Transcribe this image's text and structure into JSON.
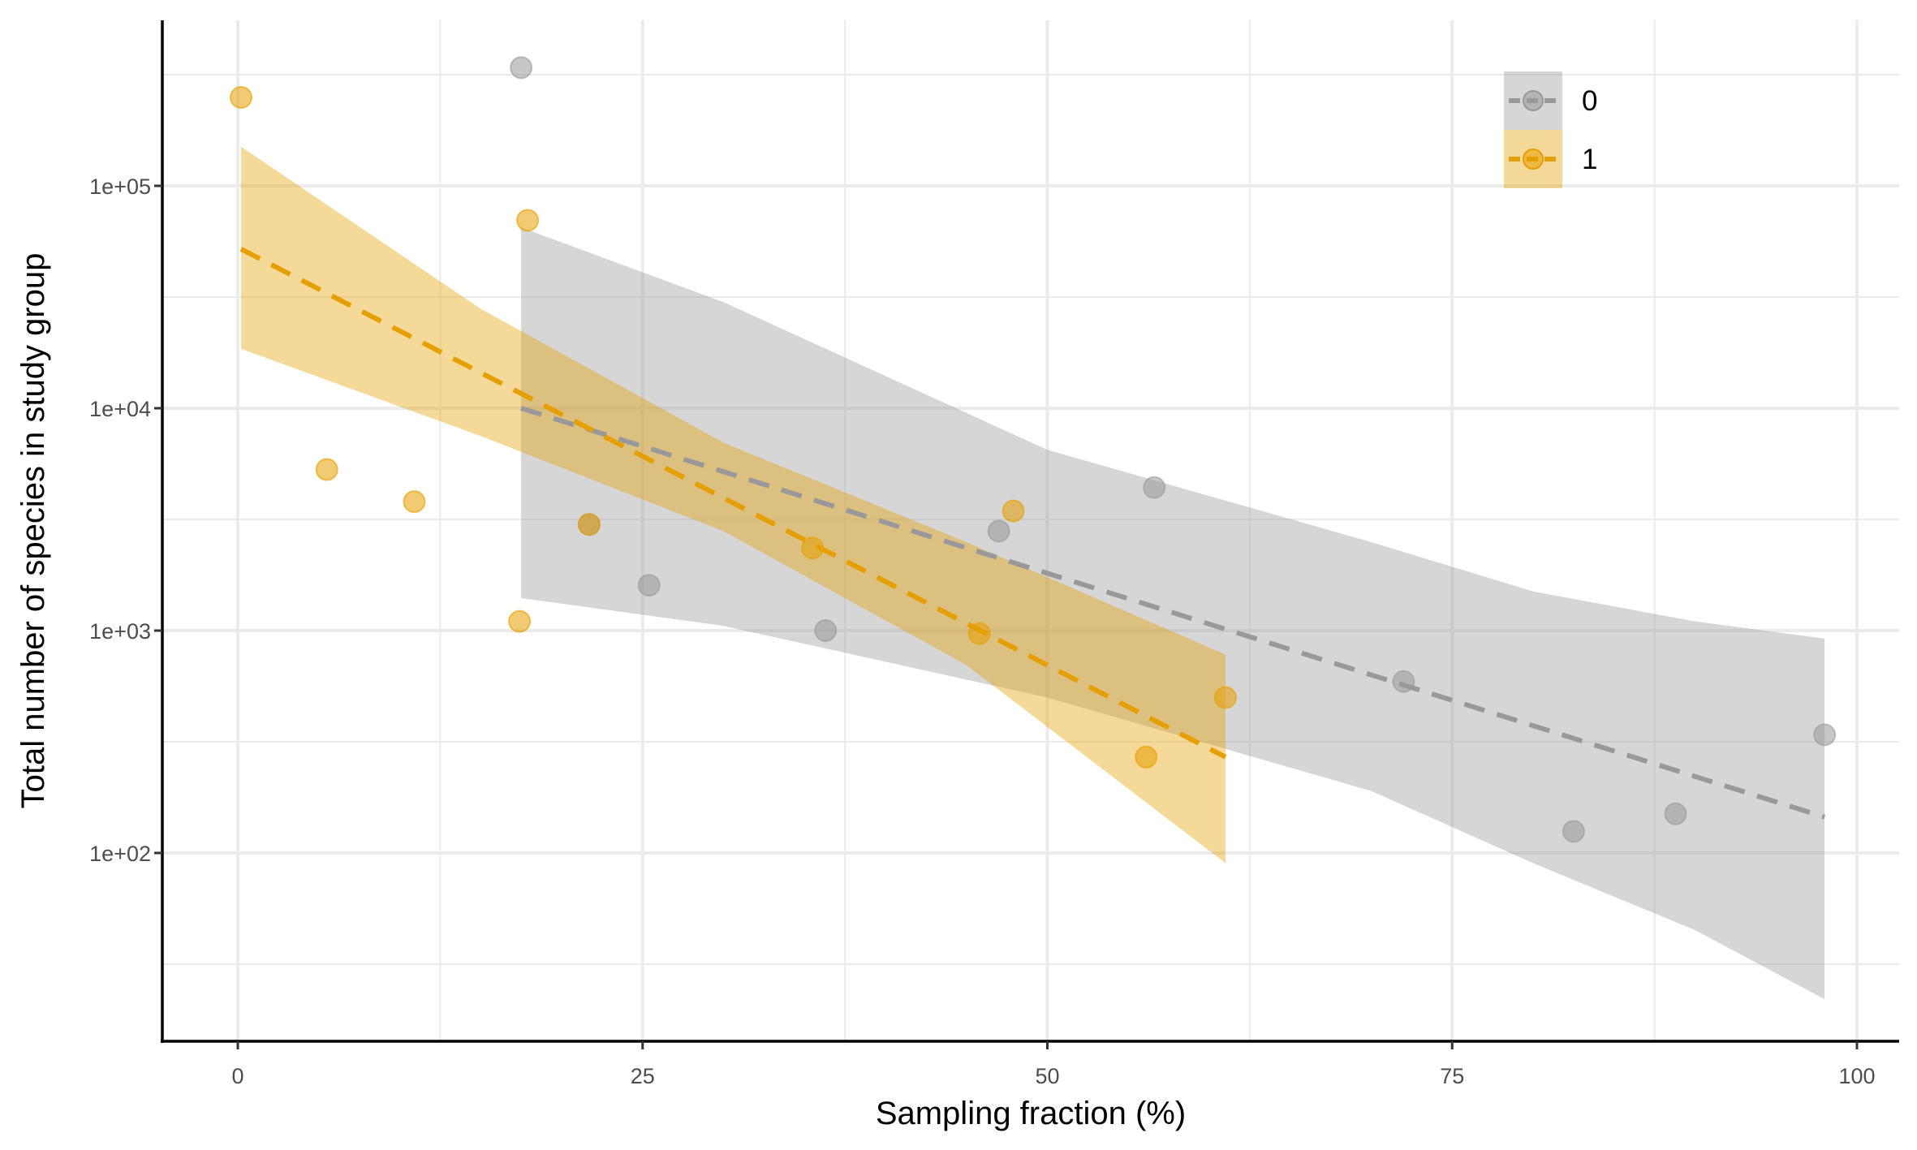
{
  "chart_data": {
    "type": "scatter",
    "title": "",
    "xlabel": "Sampling fraction (%)",
    "ylabel": "Total number of species in study group",
    "xlim": [
      -5,
      102.5
    ],
    "ylim": [
      8.2,
      430000
    ],
    "yscale": "log",
    "x_ticks": [
      0,
      25,
      50,
      75,
      100
    ],
    "x_tick_labels": [
      "0",
      "25",
      "50",
      "75",
      "100"
    ],
    "y_ticks": [
      100,
      1000,
      10000,
      100000
    ],
    "y_tick_labels": [
      "1e+02",
      "1e+03",
      "1e+04",
      "1e+05"
    ],
    "grid": true,
    "legend": {
      "position": "top-right",
      "entries": [
        "0",
        "1"
      ]
    },
    "colors": {
      "0": "#999999",
      "1": "#E69F00"
    },
    "series": [
      {
        "name": "0",
        "points": [
          {
            "x": 17.5,
            "y": 340000
          },
          {
            "x": 21.7,
            "y": 3000
          },
          {
            "x": 25.4,
            "y": 1600
          },
          {
            "x": 36.3,
            "y": 1000
          },
          {
            "x": 47.0,
            "y": 2800
          },
          {
            "x": 56.6,
            "y": 4400
          },
          {
            "x": 72.0,
            "y": 590
          },
          {
            "x": 82.5,
            "y": 125
          },
          {
            "x": 88.8,
            "y": 150
          },
          {
            "x": 98.0,
            "y": 340
          }
        ],
        "fit": {
          "x_start": 17.5,
          "y_start": 10000,
          "x_end": 98.0,
          "y_end": 145
        },
        "ribbon": [
          {
            "x": 17.5,
            "lower": 1400,
            "upper": 65000
          },
          {
            "x": 30.0,
            "lower": 1050,
            "upper": 30000
          },
          {
            "x": 50.0,
            "lower": 500,
            "upper": 6500
          },
          {
            "x": 70.0,
            "lower": 190,
            "upper": 2500
          },
          {
            "x": 80.0,
            "lower": 90,
            "upper": 1500
          },
          {
            "x": 90.0,
            "lower": 45,
            "upper": 1100
          },
          {
            "x": 98.0,
            "lower": 22,
            "upper": 920
          }
        ]
      },
      {
        "name": "1",
        "points": [
          {
            "x": 0.2,
            "y": 250000
          },
          {
            "x": 5.5,
            "y": 5300
          },
          {
            "x": 10.9,
            "y": 3800
          },
          {
            "x": 17.4,
            "y": 1100
          },
          {
            "x": 17.9,
            "y": 70000
          },
          {
            "x": 21.7,
            "y": 3000
          },
          {
            "x": 35.5,
            "y": 2350
          },
          {
            "x": 45.8,
            "y": 970
          },
          {
            "x": 47.9,
            "y": 3450
          },
          {
            "x": 56.1,
            "y": 270
          },
          {
            "x": 61.0,
            "y": 500
          }
        ],
        "fit": {
          "x_start": 0.2,
          "y_start": 52000,
          "x_end": 61.0,
          "y_end": 270
        },
        "ribbon": [
          {
            "x": 0.2,
            "lower": 18500,
            "upper": 150000
          },
          {
            "x": 15.0,
            "lower": 7500,
            "upper": 28000
          },
          {
            "x": 30.0,
            "lower": 2800,
            "upper": 7000
          },
          {
            "x": 45.0,
            "lower": 700,
            "upper": 2500
          },
          {
            "x": 61.0,
            "lower": 90,
            "upper": 780
          }
        ]
      }
    ]
  }
}
